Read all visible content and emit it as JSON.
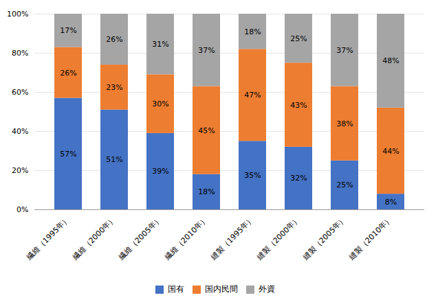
{
  "chart_data": {
    "type": "bar",
    "stacked": true,
    "categories": [
      "繊維（1995年）",
      "繊維（2000年）",
      "繊維（2005年）",
      "繊維（2010年）",
      "縫製（1995年）",
      "縫製（2000年）",
      "縫製（2005年）",
      "縫製（2010年）"
    ],
    "series": [
      {
        "name": "国有",
        "color": "#4472C4",
        "values": [
          57,
          51,
          39,
          18,
          35,
          32,
          25,
          8
        ],
        "value_labels": [
          "57%",
          "51%",
          "39%",
          "18%",
          "35%",
          "32%",
          "25%",
          "8%"
        ]
      },
      {
        "name": "国内民間",
        "color": "#ED7D31",
        "values": [
          26,
          23,
          30,
          45,
          47,
          43,
          38,
          44
        ],
        "value_labels": [
          "26%",
          "23%",
          "30%",
          "45%",
          "47%",
          "43%",
          "38%",
          "44%"
        ]
      },
      {
        "name": "外資",
        "color": "#A5A5A5",
        "values": [
          17,
          26,
          31,
          37,
          18,
          25,
          37,
          48
        ],
        "value_labels": [
          "17%",
          "26%",
          "31%",
          "37%",
          "18%",
          "25%",
          "37%",
          "48%"
        ]
      }
    ],
    "ylim": [
      0,
      100
    ],
    "yticks": [
      {
        "value": 0,
        "label": "0%"
      },
      {
        "value": 20,
        "label": "20%"
      },
      {
        "value": 40,
        "label": "40%"
      },
      {
        "value": 60,
        "label": "60%"
      },
      {
        "value": 80,
        "label": "80%"
      },
      {
        "value": 100,
        "label": "100%"
      }
    ],
    "grid": true,
    "legend": "bottom",
    "data_labels": true
  }
}
